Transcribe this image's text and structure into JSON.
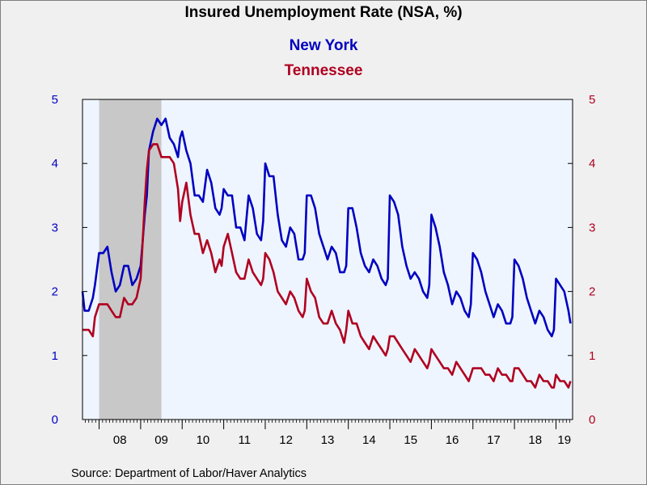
{
  "chart_data": {
    "type": "line",
    "title": "Insured Unemployment Rate (NSA, %)",
    "source": "Source:  Department of Labor/Haver Analytics",
    "x_tick_labels": [
      "08",
      "09",
      "10",
      "11",
      "12",
      "13",
      "14",
      "15",
      "16",
      "17",
      "18",
      "19"
    ],
    "x_tick_years": [
      2008,
      2009,
      2010,
      2011,
      2012,
      2013,
      2014,
      2015,
      2016,
      2017,
      2018,
      2019
    ],
    "xlim": [
      2007.6,
      2019.4
    ],
    "ylim_left": [
      0,
      5
    ],
    "ylim_right": [
      0,
      5
    ],
    "y_ticks": [
      "0",
      "1",
      "2",
      "3",
      "4",
      "5"
    ],
    "recession_shading": [
      2008.0,
      2009.5
    ],
    "grid": false,
    "legend_position": "top-center",
    "colors": {
      "new_york": "#0000c0",
      "tennessee": "#b00020",
      "plot_bg": "#eef5ff",
      "recession": "#c8c8c8"
    },
    "series": [
      {
        "name": "New York",
        "axis": "left",
        "x": [
          2007.6,
          2007.65,
          2007.75,
          2007.85,
          2007.9,
          2008.0,
          2008.1,
          2008.2,
          2008.3,
          2008.4,
          2008.5,
          2008.6,
          2008.7,
          2008.8,
          2008.9,
          2009.0,
          2009.05,
          2009.1,
          2009.15,
          2009.2,
          2009.3,
          2009.4,
          2009.5,
          2009.6,
          2009.7,
          2009.8,
          2009.9,
          2009.95,
          2010.0,
          2010.1,
          2010.2,
          2010.3,
          2010.4,
          2010.5,
          2010.6,
          2010.7,
          2010.8,
          2010.9,
          2010.95,
          2011.0,
          2011.1,
          2011.2,
          2011.3,
          2011.4,
          2011.5,
          2011.6,
          2011.7,
          2011.8,
          2011.9,
          2011.95,
          2012.0,
          2012.1,
          2012.2,
          2012.3,
          2012.4,
          2012.5,
          2012.6,
          2012.7,
          2012.8,
          2012.9,
          2012.95,
          2013.0,
          2013.1,
          2013.2,
          2013.3,
          2013.4,
          2013.5,
          2013.6,
          2013.7,
          2013.8,
          2013.9,
          2013.95,
          2014.0,
          2014.1,
          2014.2,
          2014.3,
          2014.4,
          2014.5,
          2014.6,
          2014.7,
          2014.8,
          2014.9,
          2014.95,
          2015.0,
          2015.1,
          2015.2,
          2015.3,
          2015.4,
          2015.5,
          2015.6,
          2015.7,
          2015.8,
          2015.9,
          2015.95,
          2016.0,
          2016.1,
          2016.2,
          2016.3,
          2016.4,
          2016.5,
          2016.6,
          2016.7,
          2016.8,
          2016.9,
          2016.95,
          2017.0,
          2017.1,
          2017.2,
          2017.3,
          2017.4,
          2017.5,
          2017.6,
          2017.7,
          2017.8,
          2017.9,
          2017.95,
          2018.0,
          2018.1,
          2018.2,
          2018.3,
          2018.4,
          2018.5,
          2018.6,
          2018.7,
          2018.8,
          2018.9,
          2018.95,
          2019.0,
          2019.1,
          2019.2,
          2019.3,
          2019.35
        ],
        "values": [
          2.0,
          1.7,
          1.7,
          1.9,
          2.1,
          2.6,
          2.6,
          2.7,
          2.3,
          2.0,
          2.1,
          2.4,
          2.4,
          2.1,
          2.2,
          2.4,
          2.8,
          3.2,
          3.5,
          4.2,
          4.5,
          4.7,
          4.6,
          4.7,
          4.4,
          4.3,
          4.1,
          4.4,
          4.5,
          4.2,
          4.0,
          3.5,
          3.5,
          3.4,
          3.9,
          3.7,
          3.3,
          3.2,
          3.3,
          3.6,
          3.5,
          3.5,
          3.0,
          3.0,
          2.8,
          3.5,
          3.3,
          2.9,
          2.8,
          3.1,
          4.0,
          3.8,
          3.8,
          3.2,
          2.8,
          2.7,
          3.0,
          2.9,
          2.5,
          2.5,
          2.6,
          3.5,
          3.5,
          3.3,
          2.9,
          2.7,
          2.5,
          2.7,
          2.6,
          2.3,
          2.3,
          2.4,
          3.3,
          3.3,
          3.0,
          2.6,
          2.4,
          2.3,
          2.5,
          2.4,
          2.2,
          2.1,
          2.2,
          3.5,
          3.4,
          3.2,
          2.7,
          2.4,
          2.2,
          2.3,
          2.2,
          2.0,
          1.9,
          2.1,
          3.2,
          3.0,
          2.7,
          2.3,
          2.1,
          1.8,
          2.0,
          1.9,
          1.7,
          1.6,
          1.8,
          2.6,
          2.5,
          2.3,
          2.0,
          1.8,
          1.6,
          1.8,
          1.7,
          1.5,
          1.5,
          1.6,
          2.5,
          2.4,
          2.2,
          1.9,
          1.7,
          1.5,
          1.7,
          1.6,
          1.4,
          1.3,
          1.4,
          2.2,
          2.1,
          2.0,
          1.7,
          1.5
        ]
      },
      {
        "name": "Tennessee",
        "axis": "right",
        "x": [
          2007.6,
          2007.65,
          2007.75,
          2007.85,
          2007.9,
          2008.0,
          2008.1,
          2008.2,
          2008.3,
          2008.4,
          2008.5,
          2008.6,
          2008.7,
          2008.8,
          2008.9,
          2009.0,
          2009.05,
          2009.1,
          2009.15,
          2009.2,
          2009.3,
          2009.4,
          2009.5,
          2009.6,
          2009.7,
          2009.8,
          2009.9,
          2009.95,
          2010.0,
          2010.1,
          2010.2,
          2010.3,
          2010.4,
          2010.5,
          2010.6,
          2010.7,
          2010.8,
          2010.9,
          2010.95,
          2011.0,
          2011.1,
          2011.2,
          2011.3,
          2011.4,
          2011.5,
          2011.6,
          2011.7,
          2011.8,
          2011.9,
          2011.95,
          2012.0,
          2012.1,
          2012.2,
          2012.3,
          2012.4,
          2012.5,
          2012.6,
          2012.7,
          2012.8,
          2012.9,
          2012.95,
          2013.0,
          2013.1,
          2013.2,
          2013.3,
          2013.4,
          2013.5,
          2013.6,
          2013.7,
          2013.8,
          2013.9,
          2013.95,
          2014.0,
          2014.1,
          2014.2,
          2014.3,
          2014.4,
          2014.5,
          2014.6,
          2014.7,
          2014.8,
          2014.9,
          2014.95,
          2015.0,
          2015.1,
          2015.2,
          2015.3,
          2015.4,
          2015.5,
          2015.6,
          2015.7,
          2015.8,
          2015.9,
          2015.95,
          2016.0,
          2016.1,
          2016.2,
          2016.3,
          2016.4,
          2016.5,
          2016.6,
          2016.7,
          2016.8,
          2016.9,
          2016.95,
          2017.0,
          2017.1,
          2017.2,
          2017.3,
          2017.4,
          2017.5,
          2017.6,
          2017.7,
          2017.8,
          2017.9,
          2017.95,
          2018.0,
          2018.1,
          2018.2,
          2018.3,
          2018.4,
          2018.5,
          2018.6,
          2018.7,
          2018.8,
          2018.9,
          2018.95,
          2019.0,
          2019.1,
          2019.2,
          2019.3,
          2019.35
        ],
        "values": [
          1.4,
          1.4,
          1.4,
          1.3,
          1.6,
          1.8,
          1.8,
          1.8,
          1.7,
          1.6,
          1.6,
          1.9,
          1.8,
          1.8,
          1.9,
          2.2,
          2.8,
          3.4,
          3.9,
          4.2,
          4.3,
          4.3,
          4.1,
          4.1,
          4.1,
          4.0,
          3.6,
          3.1,
          3.4,
          3.7,
          3.2,
          2.9,
          2.9,
          2.6,
          2.8,
          2.6,
          2.3,
          2.5,
          2.4,
          2.7,
          2.9,
          2.6,
          2.3,
          2.2,
          2.2,
          2.5,
          2.3,
          2.2,
          2.1,
          2.2,
          2.6,
          2.5,
          2.3,
          2.0,
          1.9,
          1.8,
          2.0,
          1.9,
          1.7,
          1.6,
          1.7,
          2.2,
          2.0,
          1.9,
          1.6,
          1.5,
          1.5,
          1.7,
          1.5,
          1.4,
          1.2,
          1.4,
          1.7,
          1.5,
          1.5,
          1.3,
          1.2,
          1.1,
          1.3,
          1.2,
          1.1,
          1.0,
          1.1,
          1.3,
          1.3,
          1.2,
          1.1,
          1.0,
          0.9,
          1.1,
          1.0,
          0.9,
          0.8,
          0.9,
          1.1,
          1.0,
          0.9,
          0.8,
          0.8,
          0.7,
          0.9,
          0.8,
          0.7,
          0.6,
          0.7,
          0.8,
          0.8,
          0.8,
          0.7,
          0.7,
          0.6,
          0.8,
          0.7,
          0.7,
          0.6,
          0.6,
          0.8,
          0.8,
          0.7,
          0.6,
          0.6,
          0.5,
          0.7,
          0.6,
          0.6,
          0.5,
          0.5,
          0.7,
          0.6,
          0.6,
          0.5,
          0.6
        ]
      }
    ]
  }
}
